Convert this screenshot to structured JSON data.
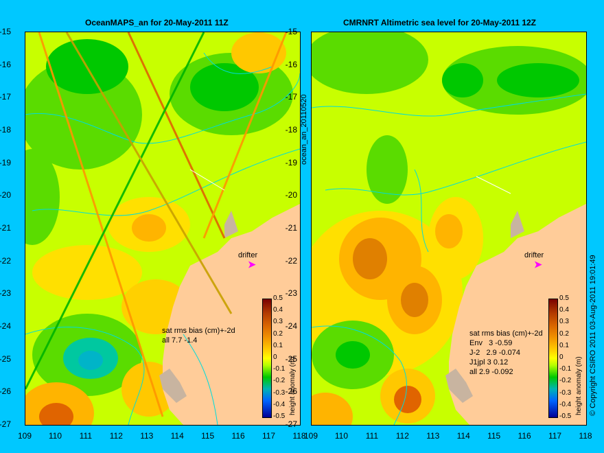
{
  "left_panel": {
    "title": "OceanMAPS_an for 20-May-2011 11Z",
    "stats_text": "sat rms bias (cm)+-2d\nall 7.7 -1.4",
    "drifter_label": "drifter",
    "colorbar_label": "height anomaly (m)",
    "side_label": "ocean_an_20110520"
  },
  "right_panel": {
    "title": "CMRNRT Altimetric sea level  for 20-May-2011 12Z",
    "stats_text": "sat rms bias (cm)+-2d\nEnv   3 -0.59\nJ-2   2.9 -0.074\nJ1jpl 3 0.12\nall 2.9 -0.092",
    "drifter_label": "drifter",
    "colorbar_label": "height anomaly (m)",
    "side_label": "© Copyright CSIRO 2011  03-Aug-2011 19:01:49"
  },
  "axes": {
    "y_ticks": [
      "-15",
      "-16",
      "-17",
      "-18",
      "-19",
      "-20",
      "-21",
      "-22",
      "-23",
      "-24",
      "-25",
      "-26",
      "-27"
    ],
    "x_ticks": [
      "109",
      "110",
      "111",
      "112",
      "113",
      "114",
      "115",
      "116",
      "117",
      "118"
    ],
    "colorbar_ticks": [
      "0.5",
      "0.4",
      "0.3",
      "0.2",
      "0.1",
      "0",
      "-0.1",
      "-0.2",
      "-0.3",
      "-0.4",
      "-0.5"
    ]
  },
  "colors": {
    "background": "#00c8ff",
    "land": "#ffcc99",
    "contour": "#00dcdc",
    "drifter": "#ff00ff"
  },
  "icons": [
    "drifter-arrow-icon",
    "colorbar-icon"
  ]
}
